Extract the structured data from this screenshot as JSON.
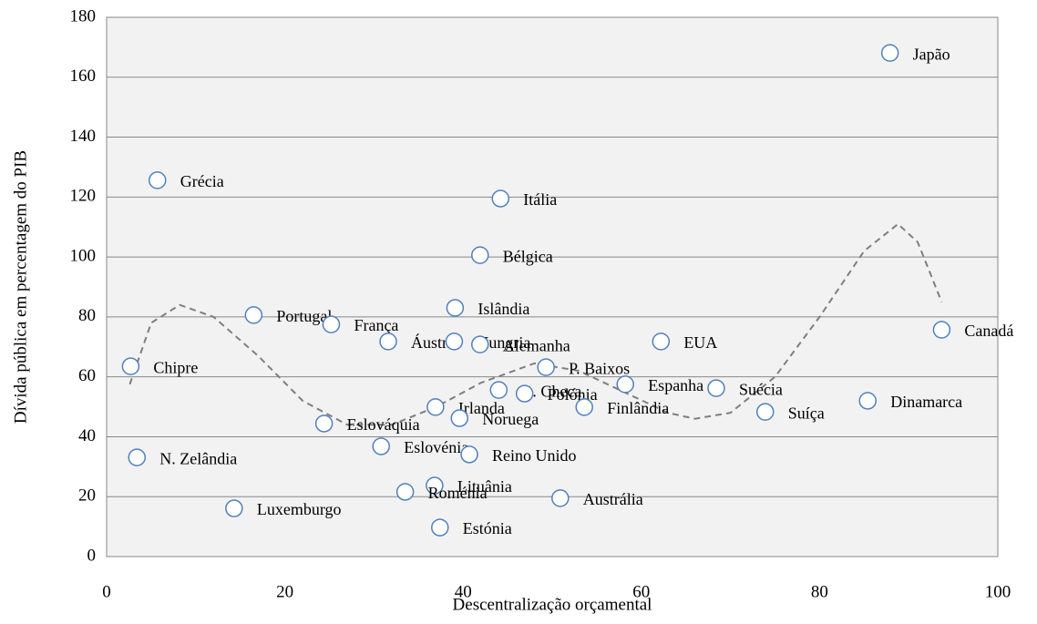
{
  "chart_data": {
    "type": "scatter",
    "x_label": "Descentralização orçamental",
    "y_label": "Dívida pública em percentagem do PIB",
    "xlim": [
      0,
      100
    ],
    "xticks": [
      0,
      20,
      40,
      60,
      80,
      100
    ],
    "ylim": [
      0,
      180
    ],
    "yticks": [
      0,
      20,
      40,
      60,
      80,
      100,
      120,
      140,
      160,
      180
    ],
    "grid": true,
    "marker_color": "#4f81bd",
    "trend_color": "#7f7f7f",
    "labels": [
      "Japão",
      "Grécia",
      "Itália",
      "Bélgica",
      "Islândia",
      "Portugal",
      "França",
      "Áustria",
      "Hungria",
      "Alemanha",
      "EUA",
      "Canadá",
      "Chipre",
      "P. Baixos",
      "R. Checa",
      "Polónia",
      "Espanha",
      "Finlândia",
      "Suécia",
      "Suíça",
      "Dinamarca",
      "Irlanda",
      "Noruega",
      "Eslováquia",
      "Eslovénia",
      "N. Zelândia",
      "Reino Unido",
      "Lituânia",
      "Roménia",
      "Austrália",
      "Luxemburgo",
      "Estónia"
    ],
    "x": [
      87.9,
      5.7,
      44.2,
      41.9,
      39.1,
      16.5,
      25.2,
      31.6,
      39.0,
      41.9,
      62.2,
      93.7,
      2.7,
      49.3,
      44.0,
      46.9,
      58.2,
      53.6,
      68.4,
      73.9,
      85.4,
      36.9,
      39.6,
      24.4,
      30.8,
      3.4,
      40.7,
      36.8,
      33.5,
      50.9,
      14.3,
      37.4
    ],
    "values": [
      168.1,
      125.6,
      119.5,
      100.6,
      83.0,
      80.6,
      77.5,
      71.8,
      71.8,
      70.8,
      71.8,
      75.7,
      63.5,
      63.2,
      55.6,
      54.4,
      57.5,
      49.9,
      56.2,
      48.3,
      52.0,
      49.9,
      46.2,
      44.4,
      36.8,
      33.1,
      34.1,
      23.7,
      21.6,
      19.5,
      16.1,
      9.7
    ],
    "trend": {
      "x": [
        2.6,
        5,
        8.2,
        12,
        17,
        22,
        27,
        32,
        37,
        42,
        48,
        53,
        58,
        63,
        66,
        70,
        75,
        80,
        85,
        88.8,
        91,
        93.7
      ],
      "values": [
        57.5,
        78,
        84,
        80,
        67,
        52,
        44,
        44,
        50,
        58,
        64.5,
        62,
        55,
        48,
        46,
        48,
        60,
        80,
        102,
        111,
        105,
        85
      ]
    }
  }
}
